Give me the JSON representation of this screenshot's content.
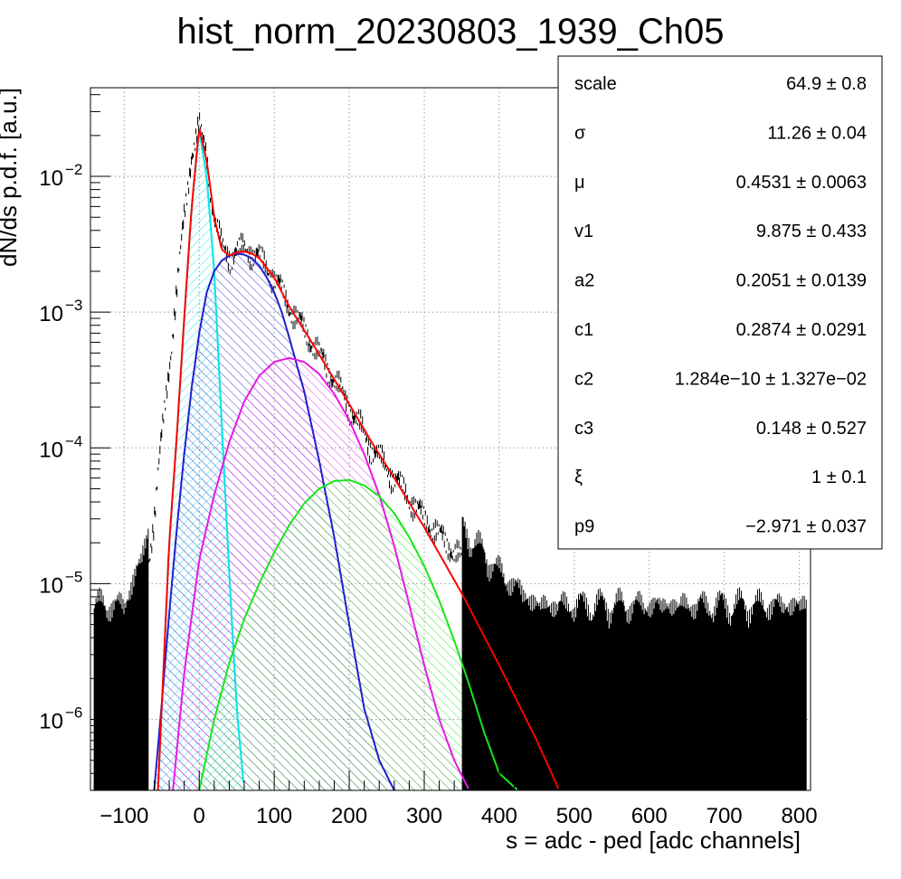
{
  "chart_data": {
    "type": "line",
    "title": "hist_norm_20230803_1939_Ch05",
    "xlabel": "s = adc - ped [adc channels]",
    "ylabel": "dN/ds p.d.f. [a.u.]",
    "xlim": [
      -145,
      815
    ],
    "ylim": [
      3e-07,
      0.045
    ],
    "yscale": "log",
    "grid": true,
    "x_ticks": [
      -100,
      0,
      100,
      200,
      300,
      400,
      500,
      600,
      700,
      800
    ],
    "x_tick_labels": [
      "−100",
      "0",
      "100",
      "200",
      "300",
      "400",
      "500",
      "600",
      "700",
      "800"
    ],
    "y_ticks": [
      {
        "value": 1e-06,
        "label": "10",
        "exp": "−6"
      },
      {
        "value": 1e-05,
        "label": "10",
        "exp": "−5"
      },
      {
        "value": 0.0001,
        "label": "10",
        "exp": "−4"
      },
      {
        "value": 0.001,
        "label": "10",
        "exp": "−3"
      },
      {
        "value": 0.01,
        "label": "10",
        "exp": "−2"
      }
    ],
    "histogram": {
      "color": "#000000",
      "x": [
        -100,
        -80,
        -70,
        -60,
        -50,
        -40,
        -30,
        -20,
        -10,
        0,
        10,
        20,
        30,
        40,
        50,
        60,
        70,
        80,
        100,
        120,
        150,
        180,
        200,
        230,
        260,
        300,
        350,
        400,
        450,
        500,
        600,
        700,
        800
      ],
      "values": [
        4e-06,
        8e-06,
        1.2e-05,
        3e-05,
        0.00012,
        0.0004,
        0.0014,
        0.005,
        0.015,
        0.023,
        0.014,
        0.005,
        0.003,
        0.0026,
        0.0028,
        0.0029,
        0.0028,
        0.0025,
        0.0018,
        0.0011,
        0.0006,
        0.00032,
        0.0002,
        0.0001,
        6e-05,
        3e-05,
        1.5e-05,
        7e-06,
        4e-06,
        4e-06,
        4e-06,
        4e-06,
        4e-06
      ]
    },
    "series": [
      {
        "color": "#ff0000",
        "hatch": false,
        "x": [
          -55,
          -40,
          -30,
          -20,
          -10,
          0,
          10,
          20,
          30,
          40,
          50,
          60,
          70,
          80,
          100,
          120,
          150,
          180,
          200,
          230,
          260,
          300,
          350,
          400,
          450,
          480
        ],
        "values": [
          3e-07,
          2e-05,
          0.00012,
          0.0009,
          0.006,
          0.023,
          0.013,
          0.005,
          0.0029,
          0.0026,
          0.00275,
          0.0028,
          0.0027,
          0.0025,
          0.0018,
          0.0011,
          0.0006,
          0.00032,
          0.00021,
          0.00011,
          6e-05,
          2.6e-05,
          8.5e-06,
          2.5e-06,
          7e-07,
          3e-07
        ]
      },
      {
        "color": "#00e5e5",
        "hatch": true,
        "x": [
          -55,
          -40,
          -30,
          -20,
          -10,
          0,
          10,
          20,
          30,
          40,
          50,
          60
        ],
        "values": [
          3e-07,
          2e-05,
          0.00012,
          0.0009,
          0.006,
          0.022,
          0.01,
          0.002,
          0.00015,
          1.2e-05,
          1.2e-06,
          3e-07
        ]
      },
      {
        "color": "#1f1fcf",
        "hatch": true,
        "x": [
          -60,
          -50,
          -40,
          -30,
          -20,
          -10,
          0,
          10,
          20,
          30,
          40,
          50,
          60,
          70,
          80,
          90,
          100,
          110,
          120,
          140,
          160,
          180,
          200,
          220,
          240,
          260
        ],
        "values": [
          3e-07,
          1.3e-06,
          6e-06,
          2.5e-05,
          9e-05,
          0.00028,
          0.0007,
          0.0014,
          0.002,
          0.0024,
          0.0026,
          0.0027,
          0.00265,
          0.0025,
          0.0022,
          0.0018,
          0.0014,
          0.001,
          0.00065,
          0.00026,
          8e-05,
          2.2e-05,
          5e-06,
          1.2e-06,
          5e-07,
          3e-07
        ]
      },
      {
        "color": "#e619e6",
        "hatch": true,
        "x": [
          -35,
          -20,
          0,
          20,
          40,
          60,
          80,
          100,
          120,
          140,
          160,
          180,
          200,
          220,
          240,
          260,
          280,
          300,
          320,
          340,
          360
        ],
        "values": [
          3e-07,
          2.2e-06,
          1.5e-05,
          4.5e-05,
          0.00011,
          0.00022,
          0.00034,
          0.00043,
          0.00046,
          0.00043,
          0.00035,
          0.00025,
          0.00016,
          9e-05,
          4.5e-05,
          1.9e-05,
          7e-06,
          2.5e-06,
          1e-06,
          5e-07,
          3e-07
        ]
      },
      {
        "color": "#19e619",
        "hatch": true,
        "x": [
          0,
          20,
          40,
          60,
          80,
          100,
          120,
          140,
          160,
          180,
          200,
          220,
          240,
          260,
          280,
          300,
          320,
          340,
          360,
          380,
          400,
          425
        ],
        "values": [
          3e-07,
          1e-06,
          2.6e-06,
          5.5e-06,
          1e-05,
          1.7e-05,
          2.7e-05,
          3.9e-05,
          5e-05,
          5.7e-05,
          5.8e-05,
          5.3e-05,
          4.4e-05,
          3.3e-05,
          2.2e-05,
          1.35e-05,
          7.5e-06,
          3.8e-06,
          1.8e-06,
          8e-07,
          4e-07,
          3e-07
        ]
      }
    ]
  },
  "stats": [
    {
      "name": "scale",
      "value": "64.9 ± 0.8"
    },
    {
      "name": "σ",
      "value": "11.26 ± 0.04"
    },
    {
      "name": "μ",
      "value": "0.4531 ± 0.0063"
    },
    {
      "name": "v1",
      "value": "9.875 ± 0.433"
    },
    {
      "name": "a2",
      "value": "0.2051 ± 0.0139"
    },
    {
      "name": "c1",
      "value": "0.2874 ± 0.0291"
    },
    {
      "name": "c2",
      "value": "1.284e−10 ± 1.327e−02"
    },
    {
      "name": "c3",
      "value": "0.148 ± 0.527"
    },
    {
      "name": "ξ",
      "value": "1 ± 0.1"
    },
    {
      "name": "p9",
      "value": "−2.971 ± 0.037"
    }
  ]
}
